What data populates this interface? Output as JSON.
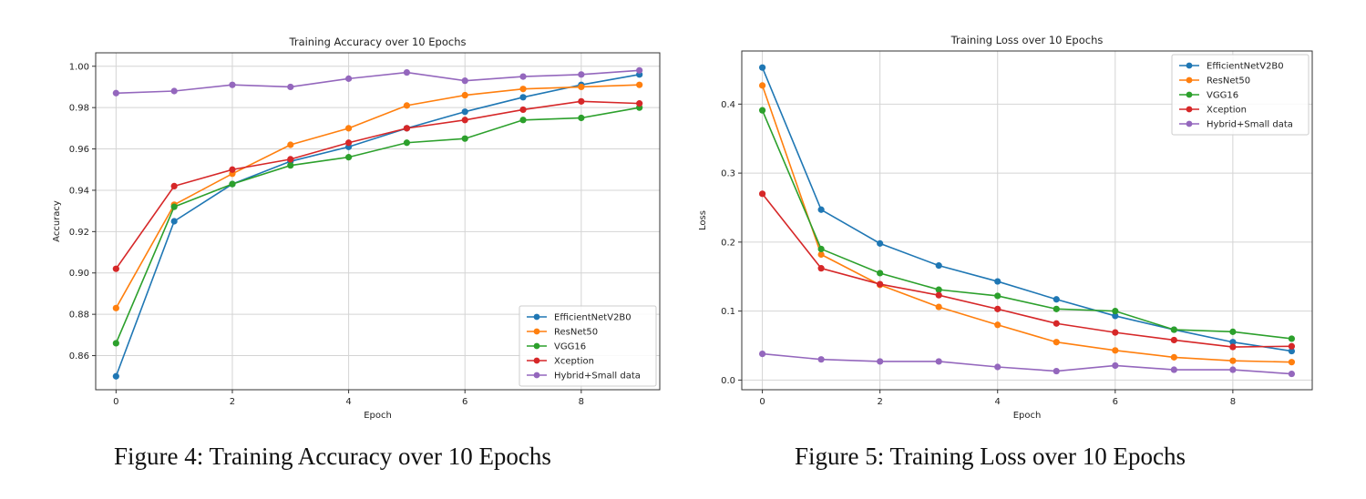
{
  "figure_captions": [
    "Figure 4: Training Accuracy over 10 Epochs",
    "Figure 5: Training Loss over 10 Epochs"
  ],
  "chart_data": [
    {
      "type": "line",
      "title": "Training Accuracy over 10 Epochs",
      "xlabel": "Epoch",
      "ylabel": "Accuracy",
      "x": [
        0,
        1,
        2,
        3,
        4,
        5,
        6,
        7,
        8,
        9
      ],
      "xticks": [
        0,
        2,
        4,
        6,
        8
      ],
      "xlim": [
        -0.35,
        9.35
      ],
      "yticks": [
        0.86,
        0.88,
        0.9,
        0.92,
        0.94,
        0.96,
        0.98,
        1.0
      ],
      "ytick_labels": [
        "0.86",
        "0.88",
        "0.90",
        "0.92",
        "0.94",
        "0.96",
        "0.98",
        "1.00"
      ],
      "ylim": [
        0.8435,
        1.0065
      ],
      "grid": true,
      "legend_position": "lower-right",
      "series": [
        {
          "name": "EfficientNetV2B0",
          "color": "#1f77b4",
          "values": [
            0.85,
            0.925,
            0.943,
            0.954,
            0.961,
            0.97,
            0.978,
            0.985,
            0.991,
            0.996
          ]
        },
        {
          "name": "ResNet50",
          "color": "#ff7f0e",
          "values": [
            0.883,
            0.933,
            0.948,
            0.962,
            0.97,
            0.981,
            0.986,
            0.989,
            0.99,
            0.991
          ]
        },
        {
          "name": "VGG16",
          "color": "#2ca02c",
          "values": [
            0.866,
            0.932,
            0.943,
            0.952,
            0.956,
            0.963,
            0.965,
            0.974,
            0.975,
            0.98
          ]
        },
        {
          "name": "Xception",
          "color": "#d62728",
          "values": [
            0.902,
            0.942,
            0.95,
            0.955,
            0.963,
            0.97,
            0.974,
            0.979,
            0.983,
            0.982
          ]
        },
        {
          "name": "Hybrid+Small data",
          "color": "#9467bd",
          "values": [
            0.987,
            0.988,
            0.991,
            0.99,
            0.994,
            0.997,
            0.993,
            0.995,
            0.996,
            0.998
          ]
        }
      ]
    },
    {
      "type": "line",
      "title": "Training Loss over 10 Epochs",
      "xlabel": "Epoch",
      "ylabel": "Loss",
      "x": [
        0,
        1,
        2,
        3,
        4,
        5,
        6,
        7,
        8,
        9
      ],
      "xticks": [
        0,
        2,
        4,
        6,
        8
      ],
      "xlim": [
        -0.35,
        9.35
      ],
      "yticks": [
        0.0,
        0.1,
        0.2,
        0.3,
        0.4
      ],
      "ytick_labels": [
        "0.0",
        "0.1",
        "0.2",
        "0.3",
        "0.4"
      ],
      "ylim": [
        -0.014,
        0.477
      ],
      "grid": true,
      "legend_position": "top-right",
      "series": [
        {
          "name": "EfficientNetV2B0",
          "color": "#1f77b4",
          "values": [
            0.453,
            0.247,
            0.198,
            0.166,
            0.143,
            0.117,
            0.093,
            0.073,
            0.055,
            0.042
          ]
        },
        {
          "name": "ResNet50",
          "color": "#ff7f0e",
          "values": [
            0.427,
            0.182,
            0.138,
            0.106,
            0.08,
            0.055,
            0.043,
            0.033,
            0.028,
            0.026
          ]
        },
        {
          "name": "VGG16",
          "color": "#2ca02c",
          "values": [
            0.391,
            0.19,
            0.155,
            0.131,
            0.122,
            0.103,
            0.1,
            0.073,
            0.07,
            0.06
          ]
        },
        {
          "name": "Xception",
          "color": "#d62728",
          "values": [
            0.27,
            0.162,
            0.139,
            0.123,
            0.103,
            0.082,
            0.069,
            0.058,
            0.048,
            0.049
          ]
        },
        {
          "name": "Hybrid+Small data",
          "color": "#9467bd",
          "values": [
            0.038,
            0.03,
            0.027,
            0.027,
            0.019,
            0.013,
            0.021,
            0.015,
            0.015,
            0.009
          ]
        }
      ]
    }
  ]
}
